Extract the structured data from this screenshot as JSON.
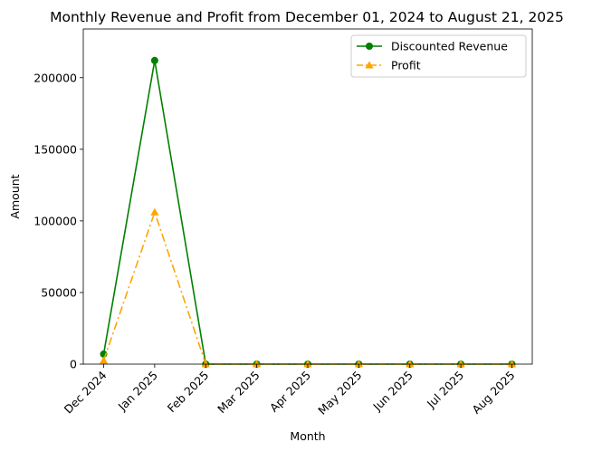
{
  "chart_data": {
    "type": "line",
    "title": "Monthly Revenue and Profit from December 01, 2024 to August 21, 2025",
    "xlabel": "Month",
    "ylabel": "Amount",
    "categories": [
      "Dec 2024",
      "Jan 2025",
      "Feb 2025",
      "Mar 2025",
      "Apr 2025",
      "May 2025",
      "Jun 2025",
      "Jul 2025",
      "Aug 2025"
    ],
    "ylim": [
      0,
      234000
    ],
    "yticks": [
      0,
      50000,
      100000,
      150000,
      200000
    ],
    "grid": false,
    "legend_position": "top-right",
    "series": [
      {
        "name": "Discounted Revenue",
        "values": [
          7000,
          212000,
          0,
          0,
          0,
          0,
          0,
          0,
          0
        ],
        "color": "#008000",
        "marker": "circle",
        "linestyle": "solid"
      },
      {
        "name": "Profit",
        "values": [
          2500,
          106000,
          0,
          0,
          0,
          0,
          0,
          0,
          0
        ],
        "color": "#FFA500",
        "marker": "triangle",
        "linestyle": "dashdot"
      }
    ]
  }
}
